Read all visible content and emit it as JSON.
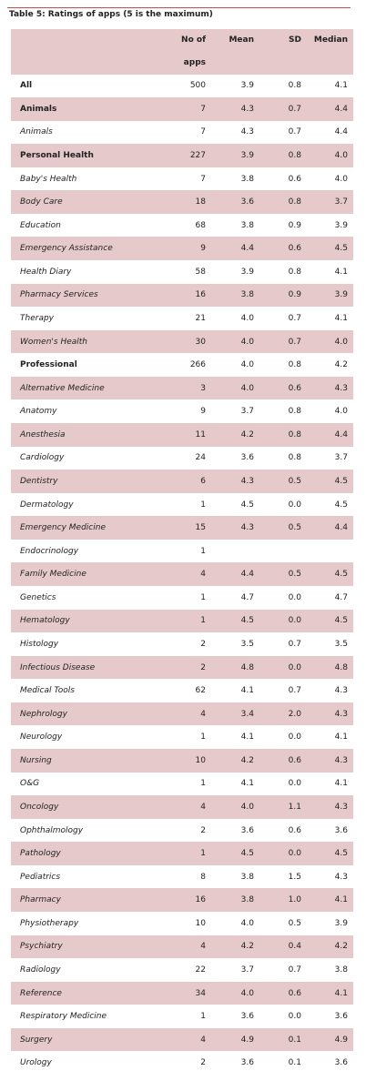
{
  "table": {
    "title": "Table 5: Ratings of apps (5 is the maximum)",
    "header": [
      "No of",
      "apps",
      "Mean",
      "SD",
      "Median"
    ],
    "rows": [
      {
        "cells": [
          "All",
          "500",
          "3.9",
          "0.8",
          "4.1"
        ],
        "bold": true
      },
      {
        "cells": [
          "Animals",
          "7",
          "4.3",
          "0.7",
          "4.4"
        ],
        "bold": true
      },
      {
        "cells": [
          "Animals",
          "7",
          "4.3",
          "0.7",
          "4.4"
        ]
      },
      {
        "cells": [
          "Personal Health",
          "227",
          "3.9",
          "0.8",
          "4.0"
        ],
        "bold": true
      },
      {
        "cells": [
          "Baby's Health",
          "7",
          "3.8",
          "0.6",
          "4.0"
        ]
      },
      {
        "cells": [
          "Body Care",
          "18",
          "3.6",
          "0.8",
          "3.7"
        ]
      },
      {
        "cells": [
          "Education",
          "68",
          "3.8",
          "0.9",
          "3.9"
        ]
      },
      {
        "cells": [
          "Emergency Assistance",
          "9",
          "4.4",
          "0.6",
          "4.5"
        ]
      },
      {
        "cells": [
          "Health Diary",
          "58",
          "3.9",
          "0.8",
          "4.1"
        ]
      },
      {
        "cells": [
          "Pharmacy Services",
          "16",
          "3.8",
          "0.9",
          "3.9"
        ]
      },
      {
        "cells": [
          "Therapy",
          "21",
          "4.0",
          "0.7",
          "4.1"
        ]
      },
      {
        "cells": [
          "Women's Health",
          "30",
          "4.0",
          "0.7",
          "4.0"
        ]
      },
      {
        "cells": [
          "Professional",
          "266",
          "4.0",
          "0.8",
          "4.2"
        ],
        "bold": true
      },
      {
        "cells": [
          "Alternative Medicine",
          "3",
          "4.0",
          "0.6",
          "4.3"
        ]
      },
      {
        "cells": [
          "Anatomy",
          "9",
          "3.7",
          "0.8",
          "4.0"
        ]
      },
      {
        "cells": [
          "Anesthesia",
          "11",
          "4.2",
          "0.8",
          "4.4"
        ]
      },
      {
        "cells": [
          "Cardiology",
          "24",
          "3.6",
          "0.8",
          "3.7"
        ]
      },
      {
        "cells": [
          "Dentistry",
          "6",
          "4.3",
          "0.5",
          "4.5"
        ]
      },
      {
        "cells": [
          "Dermatology",
          "1",
          "4.5",
          "0.0",
          "4.5"
        ]
      },
      {
        "cells": [
          "Emergency Medicine",
          "15",
          "4.3",
          "0.5",
          "4.4"
        ]
      },
      {
        "cells": [
          "Endocrinology",
          "1"
        ]
      },
      {
        "cells": [
          "Family Medicine",
          "4",
          "4.4",
          "0.5",
          "4.5"
        ]
      },
      {
        "cells": [
          "Genetics",
          "1",
          "4.7",
          "0.0",
          "4.7"
        ]
      },
      {
        "cells": [
          "Hematology",
          "1",
          "4.5",
          "0.0",
          "4.5"
        ]
      },
      {
        "cells": [
          "Histology",
          "2",
          "3.5",
          "0.7",
          "3.5"
        ]
      },
      {
        "cells": [
          "Infectious Disease",
          "2",
          "4.8",
          "0.0",
          "4.8"
        ]
      },
      {
        "cells": [
          "Medical Tools",
          "62",
          "4.1",
          "0.7",
          "4.3"
        ]
      },
      {
        "cells": [
          "Nephrology",
          "4",
          "3.4",
          "2.0",
          "4.3"
        ]
      },
      {
        "cells": [
          "Neurology",
          "1",
          "4.1",
          "0.0",
          "4.1"
        ]
      },
      {
        "cells": [
          "Nursing",
          "10",
          "4.2",
          "0.6",
          "4.3"
        ]
      },
      {
        "cells": [
          "O&G",
          "1",
          "4.1",
          "0.0",
          "4.1"
        ]
      },
      {
        "cells": [
          "Oncology",
          "4",
          "4.0",
          "1.1",
          "4.3"
        ]
      },
      {
        "cells": [
          "Ophthalmology",
          "2",
          "3.6",
          "0.6",
          "3.6"
        ]
      },
      {
        "cells": [
          "Pathology",
          "1",
          "4.5",
          "0.0",
          "4.5"
        ]
      },
      {
        "cells": [
          "Pediatrics",
          "8",
          "3.8",
          "1.5",
          "4.3"
        ]
      },
      {
        "cells": [
          "Pharmacy",
          "16",
          "3.8",
          "1.0",
          "4.1"
        ]
      },
      {
        "cells": [
          "Physiotherapy",
          "10",
          "4.0",
          "0.5",
          "3.9"
        ]
      },
      {
        "cells": [
          "Psychiatry",
          "4",
          "4.2",
          "0.4",
          "4.2"
        ]
      },
      {
        "cells": [
          "Radiology",
          "22",
          "3.7",
          "0.7",
          "3.8"
        ]
      },
      {
        "cells": [
          "Reference",
          "34",
          "4.0",
          "0.6",
          "4.1"
        ]
      },
      {
        "cells": [
          "Respiratory Medicine",
          "1",
          "3.6",
          "0.0",
          "3.6"
        ]
      },
      {
        "cells": [
          "Surgery",
          "4",
          "4.9",
          "0.1",
          "4.9"
        ]
      },
      {
        "cells": [
          "Urology",
          "2",
          "3.6",
          "0.1",
          "3.6"
        ]
      }
    ]
  }
}
